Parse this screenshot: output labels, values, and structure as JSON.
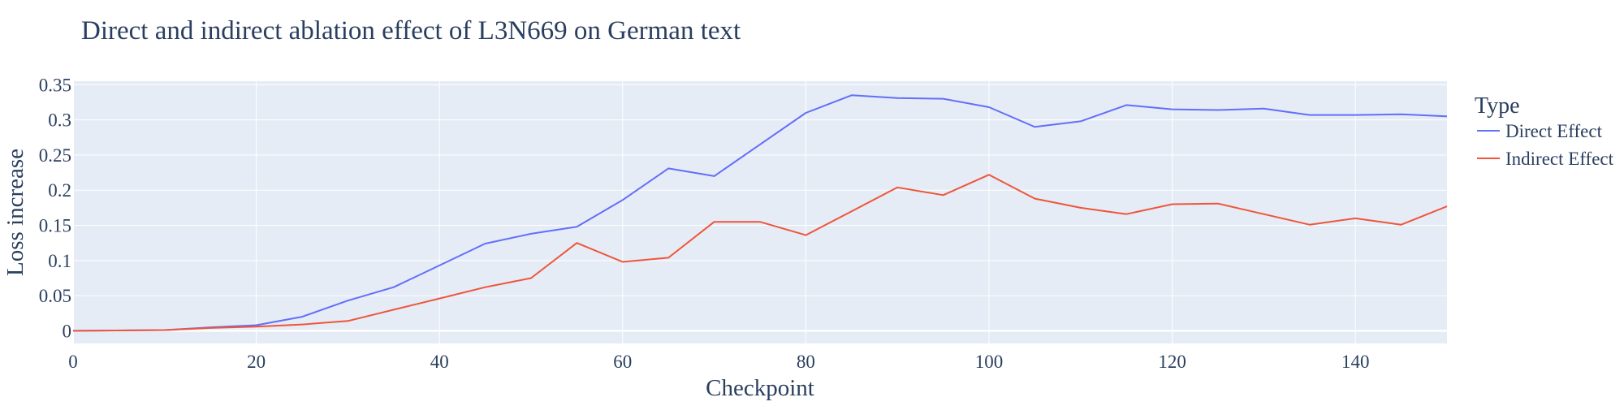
{
  "chart_data": {
    "type": "line",
    "title": "Direct and indirect ablation effect of L3N669 on German text",
    "xlabel": "Checkpoint",
    "ylabel": "Loss increase",
    "xlim": [
      0,
      150
    ],
    "ylim": [
      -0.018,
      0.355
    ],
    "xticks": [
      0,
      20,
      40,
      60,
      80,
      100,
      120,
      140
    ],
    "yticks": [
      0,
      0.05,
      0.1,
      0.15,
      0.2,
      0.25,
      0.3,
      0.35
    ],
    "ytick_labels": [
      "0",
      "0.05",
      "0.1",
      "0.15",
      "0.2",
      "0.25",
      "0.3",
      "0.35"
    ],
    "grid": true,
    "legend": {
      "title": "Type",
      "placement": "right"
    },
    "x": [
      0,
      10,
      15,
      20,
      25,
      30,
      35,
      40,
      45,
      50,
      55,
      60,
      65,
      70,
      75,
      80,
      85,
      90,
      95,
      100,
      105,
      110,
      115,
      120,
      125,
      130,
      135,
      140,
      145,
      150
    ],
    "series": [
      {
        "name": "Direct Effect",
        "color": "#636efa",
        "values": [
          0.0,
          0.001,
          0.005,
          0.008,
          0.02,
          0.043,
          0.062,
          0.093,
          0.124,
          0.138,
          0.148,
          0.186,
          0.231,
          0.22,
          0.265,
          0.31,
          0.335,
          0.331,
          0.33,
          0.318,
          0.29,
          0.298,
          0.321,
          0.315,
          0.314,
          0.316,
          0.307,
          0.307,
          0.308,
          0.305
        ]
      },
      {
        "name": "Indirect Effect",
        "color": "#ef553b",
        "values": [
          0.0,
          0.001,
          0.004,
          0.006,
          0.009,
          0.014,
          0.03,
          0.046,
          0.062,
          0.075,
          0.125,
          0.098,
          0.104,
          0.155,
          0.155,
          0.136,
          0.17,
          0.204,
          0.193,
          0.222,
          0.188,
          0.175,
          0.166,
          0.18,
          0.181,
          0.166,
          0.151,
          0.16,
          0.151,
          0.177
        ]
      }
    ]
  },
  "colors": {
    "plot_background": "#e5ecf6",
    "grid": "#ffffff",
    "text": "#2a3f5f"
  }
}
